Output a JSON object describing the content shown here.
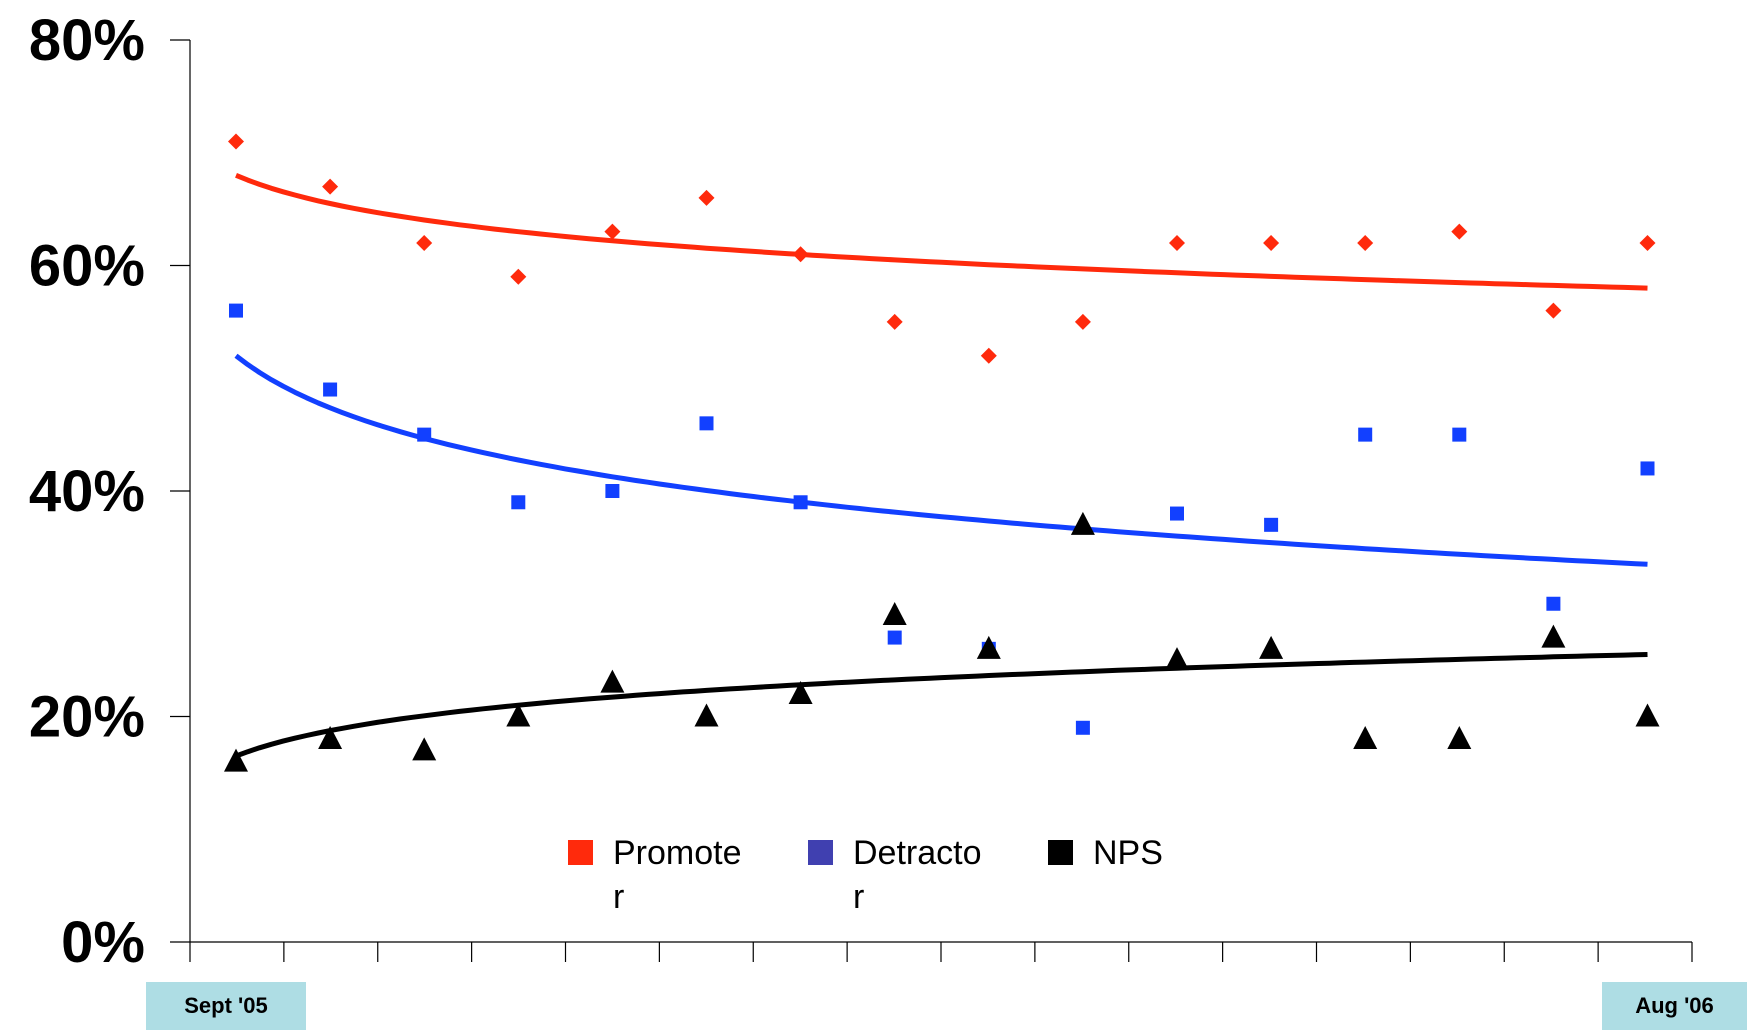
{
  "chart_data": {
    "type": "scatter",
    "title": "",
    "xlabel": "",
    "ylabel": "",
    "x_start_label": "Sept '05",
    "x_end_label": "Aug '06",
    "x": [
      1,
      2,
      3,
      4,
      5,
      6,
      7,
      8,
      9,
      10,
      11,
      12,
      13,
      14,
      15,
      16
    ],
    "ylim": [
      0,
      80
    ],
    "yticks": [
      "0%",
      "20%",
      "40%",
      "60%",
      "80%"
    ],
    "ytick_values": [
      0,
      20,
      40,
      60,
      80
    ],
    "legend_position": "bottom-center",
    "series": [
      {
        "name": "Promoter",
        "legend_lines": [
          "Promote",
          "r"
        ],
        "marker": "diamond",
        "color": "#ff2a0c",
        "values": [
          71,
          67,
          62,
          59,
          63,
          66,
          61,
          55,
          52,
          55,
          62,
          62,
          62,
          63,
          56,
          62
        ],
        "trend": [
          68,
          58
        ]
      },
      {
        "name": "Detractor",
        "legend_lines": [
          "Detracto",
          "r"
        ],
        "marker": "square",
        "color": "#1240ff",
        "legend_color": "#4040b0",
        "values": [
          56,
          49,
          45,
          39,
          40,
          46,
          39,
          27,
          26,
          19,
          38,
          37,
          45,
          45,
          30,
          42
        ],
        "trend": [
          52,
          33.5
        ]
      },
      {
        "name": "NPS",
        "legend_lines": [
          "NPS"
        ],
        "marker": "triangle",
        "color": "#000000",
        "values": [
          16,
          18,
          17,
          20,
          23,
          20,
          22,
          29,
          26,
          37,
          25,
          26,
          18,
          18,
          27,
          20
        ],
        "trend": [
          16.5,
          25.5
        ]
      }
    ]
  }
}
